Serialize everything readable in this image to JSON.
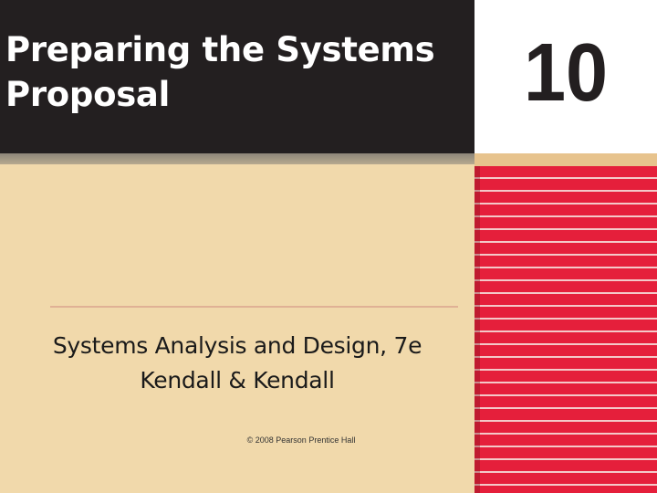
{
  "slide": {
    "title_line1": "Preparing the Systems",
    "title_line2": "Proposal",
    "chapter_number": "10",
    "subtitle_line1": "Systems Analysis and Design, 7e",
    "subtitle_line2": "Kendall & Kendall",
    "copyright": "© 2008 Pearson Prentice Hall"
  },
  "colors": {
    "title_background": "#231f20",
    "title_text": "#ffffff",
    "slide_background": "#f1d9ab",
    "stripe_red": "#e51f3b",
    "rule": "#e0b195"
  }
}
